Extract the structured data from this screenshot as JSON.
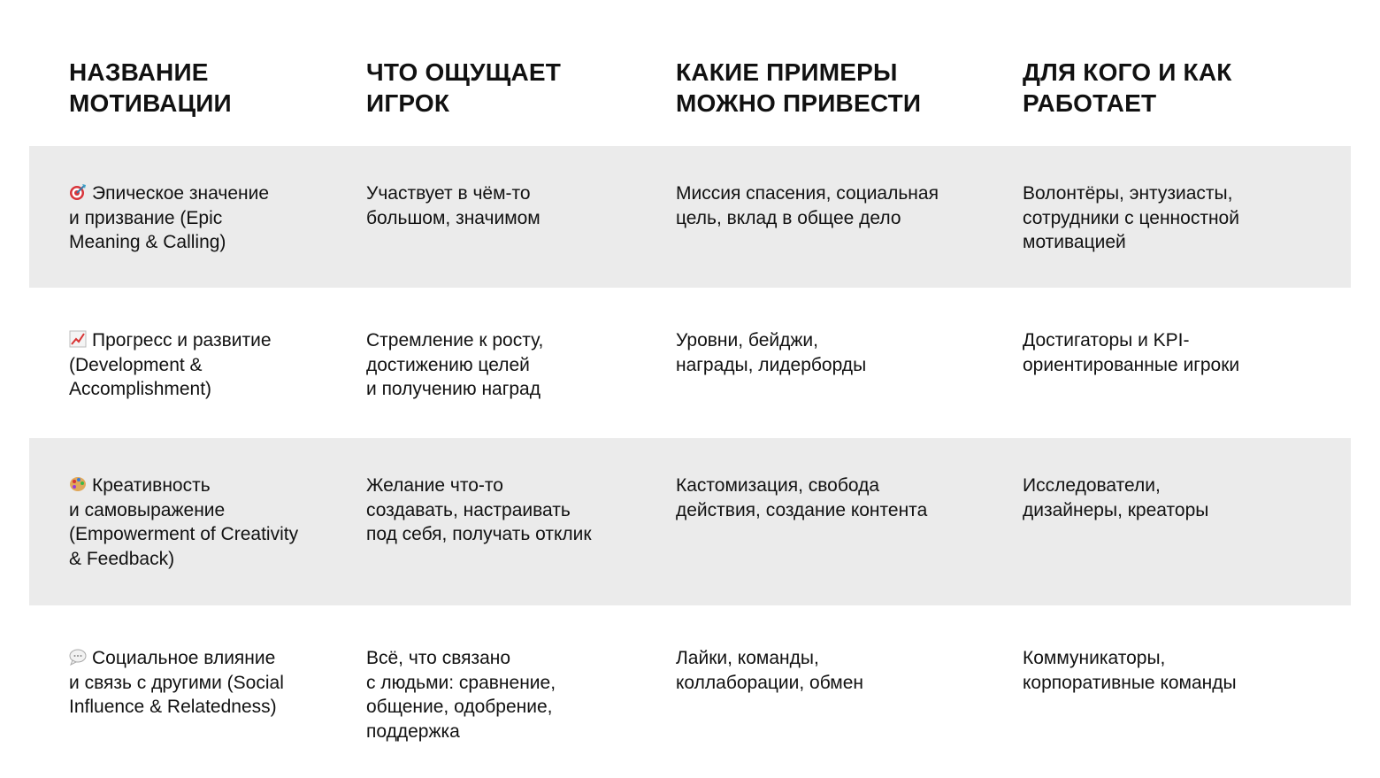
{
  "headers": [
    "НАЗВАНИЕ\nМОТИВАЦИИ",
    "ЧТО ОЩУЩАЕТ\nИГРОК",
    "КАКИЕ ПРИМЕРЫ\nМОЖНО ПРИВЕСТИ",
    "ДЛЯ КОГО И КАК\nРАБОТАЕТ"
  ],
  "rows": [
    {
      "icon": "target-dart-icon",
      "name": "Эпическое значение\nи призвание (Epic\nMeaning & Calling)",
      "feels": "Участвует в чём-то\nбольшом, значимом",
      "examples": "Миссия спасения, социальная\nцель, вклад в общее дело",
      "audience": "Волонтёры, энтузиасты,\nсотрудники с ценностной\nмотивацией"
    },
    {
      "icon": "chart-increasing-icon",
      "name": "Прогресс и развитие\n(Development &\nAccomplishment)",
      "feels": "Стремление к росту,\nдостижению целей\nи получению наград",
      "examples": "Уровни, бейджи,\nнаграды, лидерборды",
      "audience": "Достигаторы и KPI-\nориентированные игроки"
    },
    {
      "icon": "artist-palette-icon",
      "name": "Креативность\nи самовыражение\n(Empowerment of Creativity\n& Feedback)",
      "feels": "Желание что-то\nсоздавать, настраивать\nпод себя, получать отклик",
      "examples": "Кастомизация, свобода\nдействия, создание контента",
      "audience": "Исследователи,\nдизайнеры, креаторы"
    },
    {
      "icon": "speech-bubble-icon",
      "name": "Социальное влияние\nи связь с другими (Social\nInfluence & Relatedness)",
      "feels": "Всё, что связано\nс людьми: сравнение,\nобщение, одобрение,\nподдержка",
      "examples": "Лайки, команды,\nколлаборации, обмен",
      "audience": "Коммуникаторы,\nкорпоративные команды"
    }
  ],
  "colors": {
    "stripe": "#ebebeb",
    "text": "#111111"
  }
}
